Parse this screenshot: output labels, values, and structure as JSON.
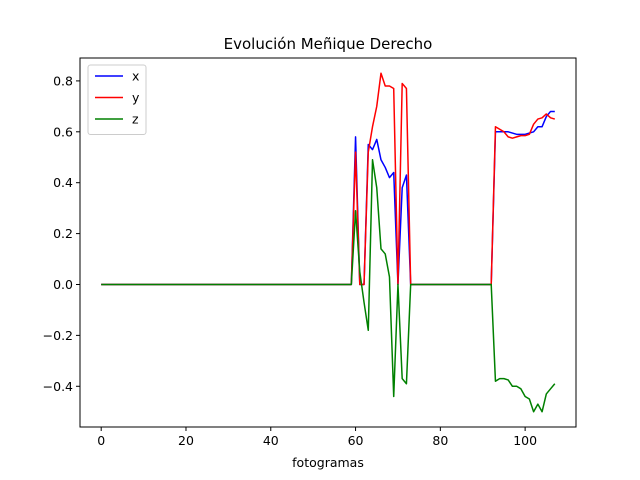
{
  "chart_data": {
    "type": "line",
    "title": "Evolución Meñique Derecho",
    "xlabel": "fotogramas",
    "ylabel": "",
    "xlim": [
      -5,
      112
    ],
    "ylim": [
      -0.56,
      0.89
    ],
    "xticks": [
      0,
      20,
      40,
      60,
      80,
      100
    ],
    "yticks": [
      -0.4,
      -0.2,
      0.0,
      0.2,
      0.4,
      0.6,
      0.8
    ],
    "xtick_labels": [
      "0",
      "20",
      "40",
      "60",
      "80",
      "100"
    ],
    "ytick_labels": [
      "−0.4",
      "−0.2",
      "0.0",
      "0.2",
      "0.4",
      "0.6",
      "0.8"
    ],
    "grid": false,
    "legend_position": "top-left",
    "series": [
      {
        "name": "x",
        "color": "#0000ff",
        "points": [
          [
            0,
            0
          ],
          [
            59,
            0
          ],
          [
            60,
            0.58
          ],
          [
            61,
            0
          ],
          [
            62,
            0
          ],
          [
            63,
            0.55
          ],
          [
            64,
            0.53
          ],
          [
            65,
            0.57
          ],
          [
            66,
            0.49
          ],
          [
            67,
            0.46
          ],
          [
            68,
            0.42
          ],
          [
            69,
            0.44
          ],
          [
            70,
            0
          ],
          [
            71,
            0.38
          ],
          [
            72,
            0.43
          ],
          [
            73,
            0
          ],
          [
            91,
            0
          ],
          [
            92,
            0
          ],
          [
            93,
            0.6
          ],
          [
            95,
            0.6
          ],
          [
            96,
            0.6
          ],
          [
            97,
            0.595
          ],
          [
            98,
            0.59
          ],
          [
            99,
            0.59
          ],
          [
            100,
            0.59
          ],
          [
            101,
            0.595
          ],
          [
            102,
            0.6
          ],
          [
            103,
            0.62
          ],
          [
            104,
            0.62
          ],
          [
            105,
            0.66
          ],
          [
            106,
            0.68
          ],
          [
            107,
            0.68
          ]
        ]
      },
      {
        "name": "y",
        "color": "#ff0000",
        "points": [
          [
            0,
            0
          ],
          [
            59,
            0
          ],
          [
            60,
            0.52
          ],
          [
            61,
            0
          ],
          [
            62,
            0
          ],
          [
            63,
            0.52
          ],
          [
            64,
            0.62
          ],
          [
            65,
            0.7
          ],
          [
            66,
            0.83
          ],
          [
            67,
            0.78
          ],
          [
            68,
            0.78
          ],
          [
            69,
            0.77
          ],
          [
            70,
            0
          ],
          [
            71,
            0.79
          ],
          [
            72,
            0.77
          ],
          [
            73,
            0
          ],
          [
            91,
            0
          ],
          [
            92,
            0
          ],
          [
            93,
            0.62
          ],
          [
            94,
            0.61
          ],
          [
            95,
            0.6
          ],
          [
            96,
            0.58
          ],
          [
            97,
            0.575
          ],
          [
            98,
            0.58
          ],
          [
            99,
            0.585
          ],
          [
            100,
            0.585
          ],
          [
            101,
            0.59
          ],
          [
            102,
            0.63
          ],
          [
            103,
            0.65
          ],
          [
            104,
            0.655
          ],
          [
            105,
            0.67
          ],
          [
            106,
            0.655
          ],
          [
            107,
            0.65
          ]
        ]
      },
      {
        "name": "z",
        "color": "#008000",
        "points": [
          [
            0,
            0
          ],
          [
            59,
            0
          ],
          [
            60,
            0.29
          ],
          [
            61,
            0.05
          ],
          [
            62,
            -0.07
          ],
          [
            63,
            -0.18
          ],
          [
            64,
            0.49
          ],
          [
            65,
            0.38
          ],
          [
            66,
            0.14
          ],
          [
            67,
            0.12
          ],
          [
            68,
            0.03
          ],
          [
            69,
            -0.44
          ],
          [
            70,
            0
          ],
          [
            71,
            -0.37
          ],
          [
            72,
            -0.39
          ],
          [
            73,
            0
          ],
          [
            91,
            0
          ],
          [
            92,
            0
          ],
          [
            93,
            -0.38
          ],
          [
            94,
            -0.37
          ],
          [
            95,
            -0.37
          ],
          [
            96,
            -0.375
          ],
          [
            97,
            -0.4
          ],
          [
            98,
            -0.4
          ],
          [
            99,
            -0.41
          ],
          [
            100,
            -0.44
          ],
          [
            101,
            -0.45
          ],
          [
            102,
            -0.5
          ],
          [
            103,
            -0.47
          ],
          [
            104,
            -0.5
          ],
          [
            105,
            -0.43
          ],
          [
            106,
            -0.41
          ],
          [
            107,
            -0.39
          ]
        ]
      }
    ]
  }
}
